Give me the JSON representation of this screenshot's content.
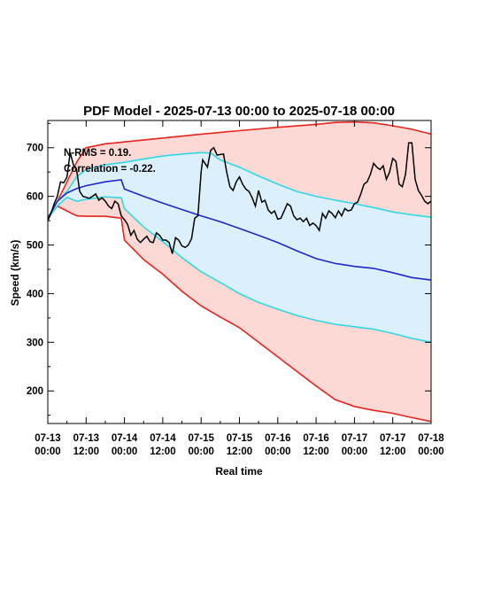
{
  "chart_data": {
    "type": "line",
    "title": "PDF Model - 2025-07-13 00:00 to 2025-07-18 00:00",
    "xlabel": "Real time",
    "ylabel": "Speed (km/s)",
    "xlim": [
      0,
      120
    ],
    "ylim": [
      133,
      756
    ],
    "x_units": "hours since 2025-07-13 00:00",
    "xticks": [
      {
        "x": 0,
        "line1": "07-13",
        "line2": "00:00"
      },
      {
        "x": 12,
        "line1": "07-13",
        "line2": "12:00"
      },
      {
        "x": 24,
        "line1": "07-14",
        "line2": "00:00"
      },
      {
        "x": 36,
        "line1": "07-14",
        "line2": "12:00"
      },
      {
        "x": 48,
        "line1": "07-15",
        "line2": "00:00"
      },
      {
        "x": 60,
        "line1": "07-15",
        "line2": "12:00"
      },
      {
        "x": 72,
        "line1": "07-16",
        "line2": "00:00"
      },
      {
        "x": 84,
        "line1": "07-16",
        "line2": "12:00"
      },
      {
        "x": 96,
        "line1": "07-17",
        "line2": "00:00"
      },
      {
        "x": 108,
        "line1": "07-17",
        "line2": "12:00"
      },
      {
        "x": 120,
        "line1": "07-18",
        "line2": "00:00"
      }
    ],
    "yticks": [
      200,
      300,
      400,
      500,
      600,
      700
    ],
    "annotations": [
      "N-RMS = 0.19.",
      "Correlation = -0.22."
    ],
    "outer_band": {
      "fill": "#fcd9d5",
      "line_color": "#e8241c",
      "upper": [
        [
          0,
          555
        ],
        [
          3,
          590
        ],
        [
          6,
          630
        ],
        [
          9,
          670
        ],
        [
          12,
          700
        ],
        [
          18,
          708
        ],
        [
          24,
          712
        ],
        [
          36,
          720
        ],
        [
          48,
          728
        ],
        [
          60,
          735
        ],
        [
          72,
          742
        ],
        [
          84,
          748
        ],
        [
          90,
          752
        ],
        [
          96,
          753
        ],
        [
          102,
          751
        ],
        [
          108,
          745
        ],
        [
          114,
          738
        ],
        [
          120,
          728
        ]
      ],
      "lower": [
        [
          0,
          555
        ],
        [
          3,
          580
        ],
        [
          6,
          570
        ],
        [
          9,
          560
        ],
        [
          12,
          559
        ],
        [
          18,
          559
        ],
        [
          23,
          555
        ],
        [
          24,
          510
        ],
        [
          30,
          470
        ],
        [
          36,
          440
        ],
        [
          42,
          405
        ],
        [
          48,
          375
        ],
        [
          54,
          352
        ],
        [
          60,
          330
        ],
        [
          66,
          300
        ],
        [
          72,
          270
        ],
        [
          78,
          240
        ],
        [
          84,
          210
        ],
        [
          90,
          182
        ],
        [
          96,
          168
        ],
        [
          102,
          160
        ],
        [
          108,
          154
        ],
        [
          114,
          145
        ],
        [
          120,
          137
        ]
      ]
    },
    "inner_band": {
      "fill": "#dcf0fb",
      "line_color": "#2fd8e4",
      "upper": [
        [
          0,
          555
        ],
        [
          3,
          590
        ],
        [
          6,
          610
        ],
        [
          9,
          640
        ],
        [
          12,
          655
        ],
        [
          18,
          665
        ],
        [
          24,
          670
        ],
        [
          30,
          677
        ],
        [
          36,
          683
        ],
        [
          42,
          687
        ],
        [
          48,
          690
        ],
        [
          51,
          689
        ],
        [
          54,
          675
        ],
        [
          60,
          660
        ],
        [
          66,
          642
        ],
        [
          72,
          625
        ],
        [
          78,
          610
        ],
        [
          84,
          600
        ],
        [
          90,
          592
        ],
        [
          96,
          585
        ],
        [
          102,
          577
        ],
        [
          108,
          568
        ],
        [
          114,
          562
        ],
        [
          120,
          557
        ]
      ],
      "lower": [
        [
          0,
          555
        ],
        [
          3,
          580
        ],
        [
          6,
          598
        ],
        [
          9,
          590
        ],
        [
          12,
          594
        ],
        [
          18,
          599
        ],
        [
          23,
          597
        ],
        [
          24,
          575
        ],
        [
          30,
          537
        ],
        [
          36,
          507
        ],
        [
          42,
          474
        ],
        [
          48,
          445
        ],
        [
          54,
          423
        ],
        [
          60,
          400
        ],
        [
          66,
          382
        ],
        [
          72,
          368
        ],
        [
          78,
          355
        ],
        [
          84,
          345
        ],
        [
          90,
          337
        ],
        [
          96,
          332
        ],
        [
          102,
          327
        ],
        [
          108,
          318
        ],
        [
          114,
          308
        ],
        [
          120,
          300
        ]
      ]
    },
    "median": {
      "color": "#1e28c8",
      "values": [
        [
          0,
          555
        ],
        [
          3,
          590
        ],
        [
          6,
          607
        ],
        [
          9,
          616
        ],
        [
          12,
          622
        ],
        [
          18,
          630
        ],
        [
          23,
          634
        ],
        [
          24,
          615
        ],
        [
          30,
          600
        ],
        [
          36,
          586
        ],
        [
          42,
          573
        ],
        [
          48,
          560
        ],
        [
          54,
          548
        ],
        [
          60,
          534
        ],
        [
          66,
          520
        ],
        [
          72,
          505
        ],
        [
          78,
          488
        ],
        [
          84,
          472
        ],
        [
          90,
          462
        ],
        [
          96,
          456
        ],
        [
          102,
          452
        ],
        [
          108,
          443
        ],
        [
          114,
          433
        ],
        [
          120,
          428
        ]
      ]
    },
    "observed": {
      "color": "#000000",
      "values": [
        [
          0,
          550
        ],
        [
          1,
          565
        ],
        [
          2,
          585
        ],
        [
          3,
          600
        ],
        [
          4,
          630
        ],
        [
          5,
          628
        ],
        [
          6,
          640
        ],
        [
          7,
          690
        ],
        [
          8,
          665
        ],
        [
          9,
          655
        ],
        [
          10,
          610
        ],
        [
          11,
          600
        ],
        [
          12,
          598
        ],
        [
          13,
          596
        ],
        [
          14,
          600
        ],
        [
          15,
          605
        ],
        [
          16,
          592
        ],
        [
          17,
          597
        ],
        [
          18,
          590
        ],
        [
          19,
          580
        ],
        [
          20,
          575
        ],
        [
          21,
          590
        ],
        [
          22,
          585
        ],
        [
          23,
          560
        ],
        [
          24,
          552
        ],
        [
          25,
          542
        ],
        [
          26,
          520
        ],
        [
          27,
          530
        ],
        [
          28,
          512
        ],
        [
          29,
          505
        ],
        [
          30,
          512
        ],
        [
          31,
          518
        ],
        [
          32,
          507
        ],
        [
          33,
          505
        ],
        [
          34,
          525
        ],
        [
          35,
          520
        ],
        [
          36,
          510
        ],
        [
          37,
          510
        ],
        [
          38,
          505
        ],
        [
          39,
          482
        ],
        [
          40,
          515
        ],
        [
          41,
          510
        ],
        [
          42,
          498
        ],
        [
          43,
          495
        ],
        [
          44,
          500
        ],
        [
          45,
          513
        ],
        [
          46,
          555
        ],
        [
          47,
          560
        ],
        [
          48,
          650
        ],
        [
          48.5,
          675
        ],
        [
          49,
          670
        ],
        [
          50,
          660
        ],
        [
          51,
          695
        ],
        [
          52,
          700
        ],
        [
          53,
          685
        ],
        [
          54,
          686
        ],
        [
          55,
          687
        ],
        [
          56,
          650
        ],
        [
          57,
          620
        ],
        [
          58,
          612
        ],
        [
          59,
          630
        ],
        [
          60,
          640
        ],
        [
          61,
          625
        ],
        [
          62,
          615
        ],
        [
          63,
          610
        ],
        [
          64,
          597
        ],
        [
          65,
          580
        ],
        [
          66,
          612
        ],
        [
          67,
          588
        ],
        [
          68,
          592
        ],
        [
          69,
          572
        ],
        [
          70,
          565
        ],
        [
          71,
          570
        ],
        [
          72,
          553
        ],
        [
          73,
          555
        ],
        [
          74,
          570
        ],
        [
          75,
          585
        ],
        [
          76,
          580
        ],
        [
          77,
          560
        ],
        [
          78,
          552
        ],
        [
          79,
          555
        ],
        [
          80,
          548
        ],
        [
          81,
          555
        ],
        [
          82,
          540
        ],
        [
          83,
          545
        ],
        [
          84,
          540
        ],
        [
          85,
          530
        ],
        [
          86,
          565
        ],
        [
          87,
          555
        ],
        [
          88,
          570
        ],
        [
          89,
          565
        ],
        [
          90,
          556
        ],
        [
          91,
          570
        ],
        [
          92,
          560
        ],
        [
          93,
          575
        ],
        [
          94,
          570
        ],
        [
          95,
          572
        ],
        [
          96,
          585
        ],
        [
          97,
          588
        ],
        [
          98,
          605
        ],
        [
          99,
          625
        ],
        [
          100,
          630
        ],
        [
          101,
          645
        ],
        [
          102,
          668
        ],
        [
          103,
          660
        ],
        [
          104,
          655
        ],
        [
          105,
          663
        ],
        [
          106,
          635
        ],
        [
          107,
          650
        ],
        [
          108,
          678
        ],
        [
          109,
          672
        ],
        [
          110,
          625
        ],
        [
          111,
          620
        ],
        [
          112,
          645
        ],
        [
          113,
          710
        ],
        [
          114,
          710
        ],
        [
          115,
          635
        ],
        [
          116,
          612
        ],
        [
          117,
          602
        ],
        [
          118,
          590
        ],
        [
          119,
          585
        ],
        [
          120,
          590
        ]
      ]
    }
  }
}
